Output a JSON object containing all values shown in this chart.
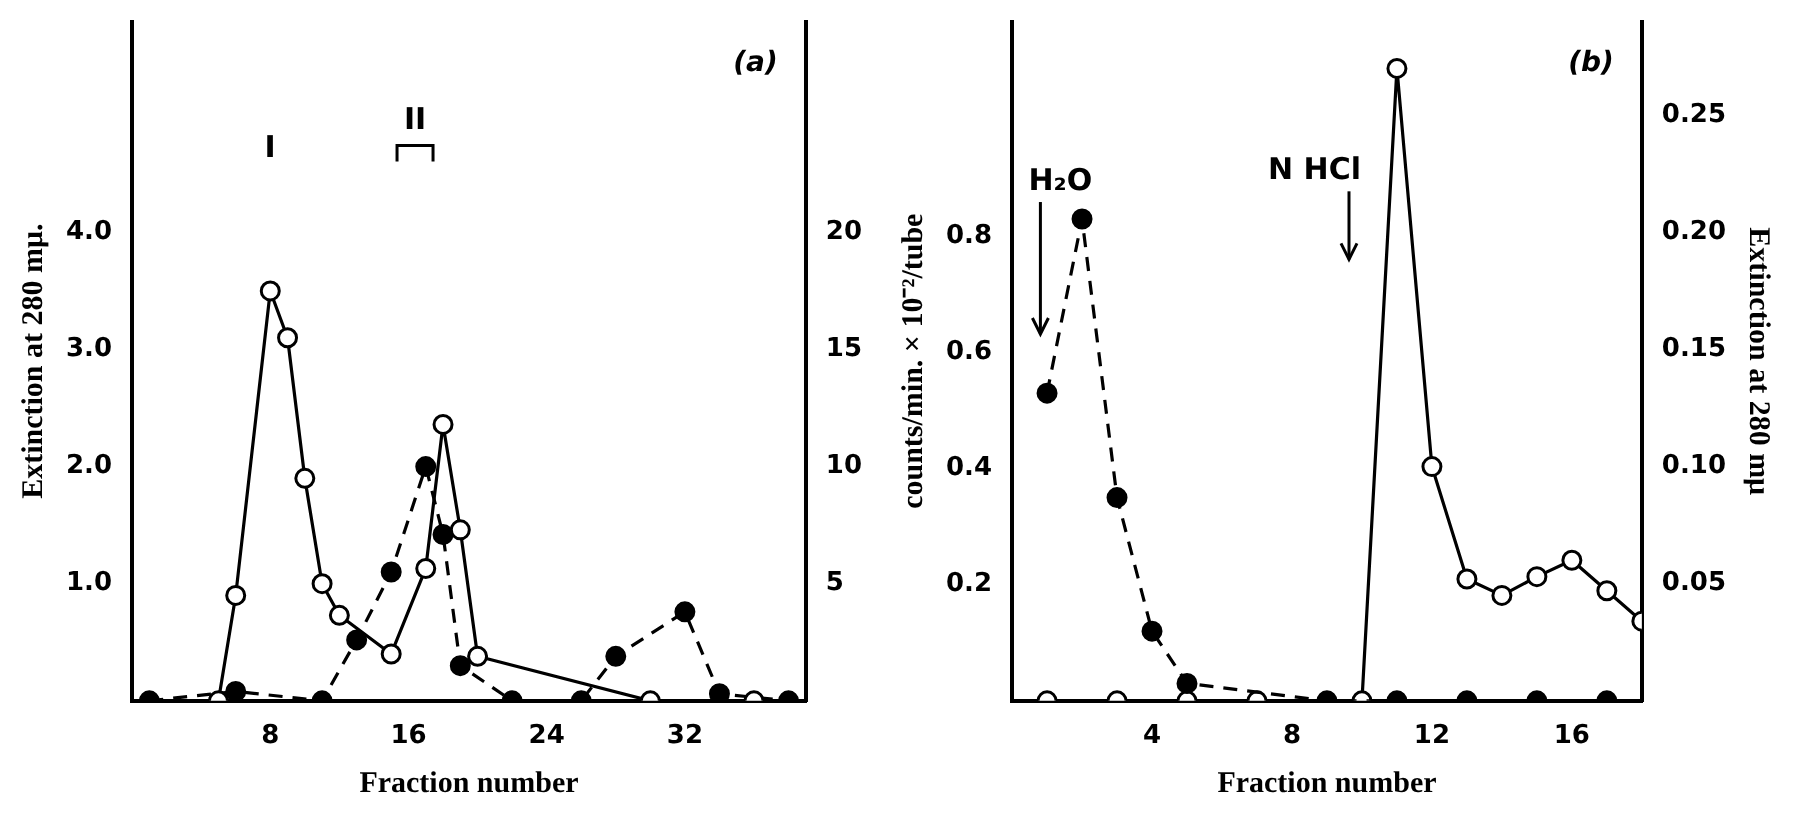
{
  "chart_data": [
    {
      "type": "line",
      "xlabel": "Fraction number",
      "ylabel": "Extinction at 280 mμ.",
      "xlim": [
        0,
        39
      ],
      "xticks": [
        8,
        16,
        24,
        32
      ],
      "ylim": [
        0,
        5.8
      ],
      "yticks": [
        {
          "value": 1,
          "label": "1.0"
        },
        {
          "value": 2,
          "label": "2.0"
        },
        {
          "value": 3,
          "label": "3.0"
        },
        {
          "value": 4,
          "label": "4.0"
        }
      ],
      "y2lim": [
        0,
        29
      ],
      "y2ticks": [
        5,
        10,
        15,
        20
      ],
      "grid": false,
      "legend": false,
      "marker": "circle",
      "annotations": [
        "(a)",
        "I",
        "II"
      ],
      "series": [
        {
          "color": "#000000",
          "line_style": "solid",
          "x": [
            5,
            6,
            8,
            9,
            10,
            11,
            12,
            15,
            17,
            18,
            19,
            20,
            30,
            36
          ],
          "values": [
            0,
            0.9,
            3.5,
            3.1,
            1.9,
            1.0,
            0.73,
            0.4,
            1.13,
            2.36,
            1.46,
            0.38,
            0,
            0
          ]
        },
        {
          "color": "#000000",
          "line_style": "dashed",
          "axis": "y2",
          "x": [
            1,
            6,
            11,
            13,
            15,
            17,
            18,
            19,
            22,
            26,
            28,
            32,
            34,
            38
          ],
          "values": [
            0,
            0.4,
            0,
            2.6,
            5.5,
            10,
            7.1,
            1.5,
            0,
            0,
            1.9,
            3.8,
            0.3,
            0
          ]
        }
      ]
    },
    {
      "type": "line",
      "xlabel": "Fraction number",
      "ylabel": "counts/min. × 10⁻²/tube",
      "y2label": "Extinction at 280 mμ",
      "xlim": [
        0,
        18
      ],
      "xticks": [
        4,
        8,
        12,
        16
      ],
      "ylim": [
        0,
        1.17
      ],
      "yticks": [
        {
          "value": 0.2,
          "label": "0.2"
        },
        {
          "value": 0.4,
          "label": "0.4"
        },
        {
          "value": 0.6,
          "label": "0.6"
        },
        {
          "value": 0.8,
          "label": "0.8"
        }
      ],
      "y2lim": [
        0,
        0.29
      ],
      "y2ticks": [
        0.05,
        {
          "value": 0.1,
          "label": "0.10"
        },
        0.15,
        {
          "value": 0.2,
          "label": "0.20"
        },
        0.25
      ],
      "grid": false,
      "legend": false,
      "marker": "circle",
      "annotations": [
        "(b)",
        "H₂O",
        "N HCl"
      ],
      "series": [
        {
          "color": "#000000",
          "line_style": "dashed",
          "x": [
            1,
            2,
            3,
            4,
            5,
            9,
            11,
            13,
            15,
            17
          ],
          "values": [
            0.53,
            0.83,
            0.35,
            0.12,
            0.03,
            0,
            0,
            0,
            0,
            0
          ]
        },
        {
          "color": "#000000",
          "line_style": "solid",
          "axis": "y2",
          "x": [
            1,
            3,
            5,
            7,
            10,
            11,
            12,
            13,
            14,
            15,
            16,
            17,
            18
          ],
          "values": [
            0,
            0,
            0,
            0,
            0,
            0.27,
            0.1,
            0.052,
            0.045,
            0.053,
            0.06,
            0.047,
            0.034
          ]
        }
      ]
    }
  ]
}
